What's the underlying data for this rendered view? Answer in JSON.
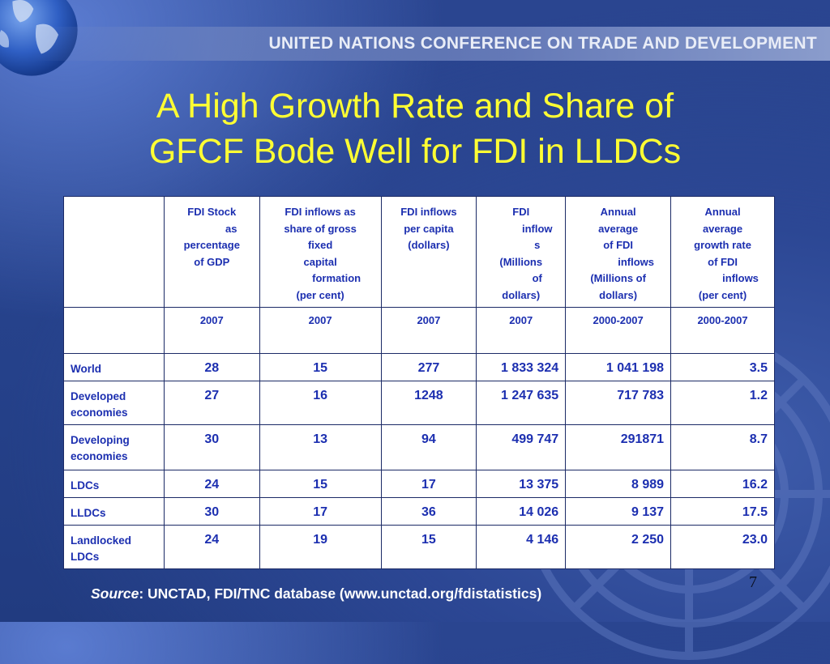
{
  "header": {
    "organization": "UNITED NATIONS CONFERENCE ON TRADE AND DEVELOPMENT"
  },
  "title": {
    "line1": "A High Growth Rate and Share of",
    "line2": "GFCF Bode Well for FDI in LLDCs"
  },
  "table": {
    "columns": [
      {
        "lines": [
          "FDI Stock",
          "as",
          "percentage",
          "of GDP"
        ],
        "period": "2007"
      },
      {
        "lines": [
          "FDI inflows as",
          "share of gross",
          "fixed",
          "capital",
          "formation",
          "(per cent)"
        ],
        "period": "2007"
      },
      {
        "lines": [
          "FDI inflows",
          "per capita",
          "(dollars)"
        ],
        "period": "2007"
      },
      {
        "lines": [
          "FDI",
          "inflow",
          "s",
          "(Millions",
          "of",
          "dollars)"
        ],
        "period": "2007"
      },
      {
        "lines": [
          "Annual",
          "average",
          "of FDI",
          "inflows",
          "(Millions of",
          "dollars)"
        ],
        "period": "2000-2007"
      },
      {
        "lines": [
          "Annual",
          "average",
          "growth rate",
          "of FDI",
          "inflows",
          "(per cent)"
        ],
        "period": "2000-2007"
      }
    ],
    "rows": [
      {
        "label": "World",
        "values": [
          "28",
          "15",
          "277",
          "1 833 324",
          "1 041 198",
          "3.5"
        ]
      },
      {
        "label": "Developed economies",
        "values": [
          "27",
          "16",
          "1248",
          "1 247 635",
          "717 783",
          "1.2"
        ]
      },
      {
        "label": "Developing economies",
        "values": [
          "30",
          "13",
          "94",
          "499 747",
          "291871",
          "8.7"
        ]
      },
      {
        "label": "LDCs",
        "values": [
          "24",
          "15",
          "17",
          "13 375",
          "8 989",
          "16.2"
        ]
      },
      {
        "label": "LLDCs",
        "values": [
          "30",
          "17",
          "36",
          "14 026",
          "9 137",
          "17.5"
        ]
      },
      {
        "label": "Landlocked LDCs",
        "values": [
          "24",
          "19",
          "15",
          "4 146",
          "2 250",
          "23.0"
        ]
      }
    ]
  },
  "footer": {
    "source_label": "Source",
    "source_text": ": UNCTAD, FDI/TNC database (www.unctad.org/fdistatistics)",
    "page_number": "7"
  },
  "colors": {
    "title": "#ffff33",
    "table_text": "#1c2fb0",
    "background": "#25418a"
  },
  "icons": {
    "top_left": "globe-icon",
    "bottom_right": "un-emblem-icon"
  }
}
